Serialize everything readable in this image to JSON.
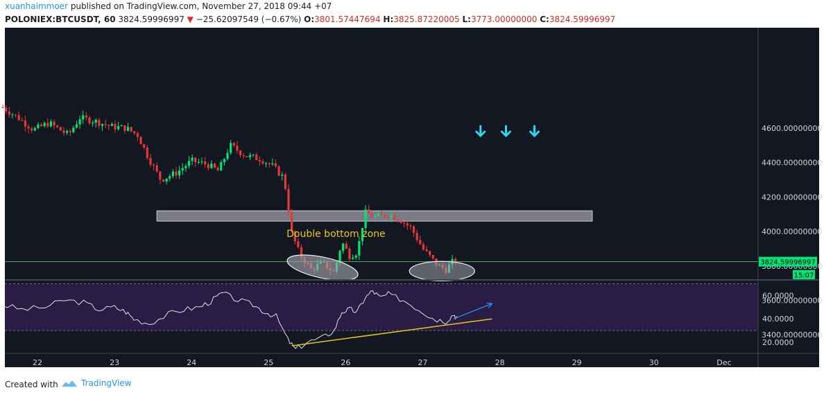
{
  "header": {
    "user": "xuanhaimmoer",
    "published_text": " published on TradingView.com, November 27, 2018 09:44 +07",
    "symbol": "POLONIEX:BTCUSDT, 60",
    "last": "3824.59996997",
    "change": "−25.62097549 (−0.67%)",
    "o_label": "O:",
    "o_value": "3801.57447694",
    "h_label": "H:",
    "h_value": "3825.87220005",
    "l_label": "L:",
    "l_value": "3773.00000000",
    "c_label": "C:",
    "c_value": "3824.59996997"
  },
  "footer": {
    "created_with": "Created with",
    "brand": "TradingView"
  },
  "colors": {
    "background": "#131722",
    "up": "#00e676",
    "down": "#e53935",
    "rsi_line": "#e0e0e0",
    "rsi_band": "#2a1d45",
    "price_line": "#4caf50",
    "annotation_yellow": "#e6c619",
    "arrow_cyan": "#29d8f0",
    "trend_blue": "#2196f3"
  },
  "chart_data": {
    "type": "candlestick",
    "interval": "60",
    "x_ticks": [
      "22",
      "23",
      "24",
      "25",
      "26",
      "27",
      "28",
      "29",
      "30",
      "Dec"
    ],
    "price_axis": {
      "ticks": [
        "4600.00000000",
        "4400.00000000",
        "4200.00000000",
        "4000.00000000",
        "3800.00000000",
        "3600.00000000",
        "3400.00000000"
      ],
      "range": [
        3270,
        4770
      ]
    },
    "current_price_label": "3824.59996997",
    "countdown_label": "15:07",
    "annotation_text": "Double bottom zone",
    "resistance_zone": {
      "y_low": 4060,
      "y_high": 4120,
      "x_start": 23.55,
      "x_end": 29.2
    },
    "double_bottom_ellipses": [
      {
        "x_center": 25.7,
        "y_center": 3790
      },
      {
        "x_center": 27.25,
        "y_center": 3770
      }
    ],
    "down_arrow_days": [
      27.75,
      28.08,
      28.45
    ],
    "rsi": {
      "ticks": [
        "60.0000",
        "40.0000",
        "20.0000"
      ],
      "range": [
        10,
        72
      ],
      "upper_band": 70,
      "lower_band": 30,
      "trendline": {
        "x1": 25.3,
        "y1": 17,
        "x2": 27.9,
        "y2": 40
      },
      "arrow": {
        "x1": 27.4,
        "y1": 40,
        "x2": 27.9,
        "y2": 53
      }
    },
    "ohlc_path": [
      [
        21.55,
        4720
      ],
      [
        21.75,
        4660
      ],
      [
        21.95,
        4590
      ],
      [
        22.15,
        4630
      ],
      [
        22.4,
        4560
      ],
      [
        22.55,
        4660
      ],
      [
        22.75,
        4640
      ],
      [
        22.95,
        4610
      ],
      [
        23.15,
        4600
      ],
      [
        23.3,
        4560
      ],
      [
        23.45,
        4420
      ],
      [
        23.6,
        4300
      ],
      [
        23.8,
        4340
      ],
      [
        24.0,
        4410
      ],
      [
        24.2,
        4390
      ],
      [
        24.35,
        4350
      ],
      [
        24.5,
        4500
      ],
      [
        24.7,
        4440
      ],
      [
        24.9,
        4420
      ],
      [
        25.05,
        4380
      ],
      [
        25.2,
        4310
      ],
      [
        25.3,
        3990
      ],
      [
        25.4,
        3870
      ],
      [
        25.55,
        3780
      ],
      [
        25.7,
        3820
      ],
      [
        25.85,
        3760
      ],
      [
        25.95,
        3940
      ],
      [
        26.05,
        3860
      ],
      [
        26.15,
        3880
      ],
      [
        26.25,
        4110
      ],
      [
        26.4,
        4080
      ],
      [
        26.55,
        4100
      ],
      [
        26.7,
        4070
      ],
      [
        26.85,
        4020
      ],
      [
        27.0,
        3900
      ],
      [
        27.1,
        3850
      ],
      [
        27.2,
        3800
      ],
      [
        27.3,
        3780
      ],
      [
        27.4,
        3830
      ],
      [
        27.45,
        3825
      ]
    ],
    "rsi_path": [
      [
        21.55,
        52
      ],
      [
        21.8,
        48
      ],
      [
        22.1,
        50
      ],
      [
        22.35,
        56
      ],
      [
        22.6,
        54
      ],
      [
        22.8,
        48
      ],
      [
        23.0,
        50
      ],
      [
        23.15,
        46
      ],
      [
        23.25,
        40
      ],
      [
        23.45,
        36
      ],
      [
        23.7,
        44
      ],
      [
        23.9,
        48
      ],
      [
        24.1,
        50
      ],
      [
        24.25,
        55
      ],
      [
        24.4,
        62
      ],
      [
        24.6,
        56
      ],
      [
        24.8,
        52
      ],
      [
        24.95,
        46
      ],
      [
        25.1,
        42
      ],
      [
        25.25,
        22
      ],
      [
        25.35,
        14
      ],
      [
        25.5,
        20
      ],
      [
        25.7,
        24
      ],
      [
        25.85,
        30
      ],
      [
        25.95,
        46
      ],
      [
        26.05,
        48
      ],
      [
        26.15,
        46
      ],
      [
        26.25,
        58
      ],
      [
        26.35,
        64
      ],
      [
        26.45,
        58
      ],
      [
        26.55,
        61
      ],
      [
        26.75,
        56
      ],
      [
        26.95,
        48
      ],
      [
        27.05,
        44
      ],
      [
        27.15,
        40
      ],
      [
        27.3,
        38
      ],
      [
        27.4,
        44
      ],
      [
        27.45,
        41
      ]
    ]
  }
}
